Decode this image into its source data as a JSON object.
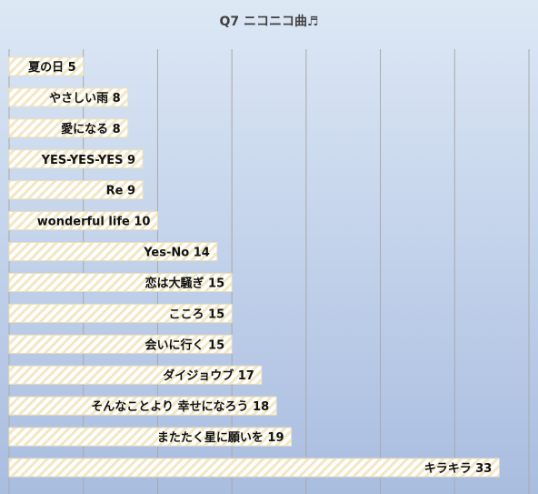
{
  "chart_data": {
    "type": "bar",
    "orientation": "horizontal",
    "title": "Q7 ニコニコ曲♬",
    "categories": [
      "夏の日",
      "やさしい雨",
      "愛になる",
      "YES-YES-YES",
      "Re",
      "wonderful life",
      "Yes-No",
      "恋は大騒ぎ",
      "こころ",
      "会いに行く",
      "ダイジョウブ",
      "そんなことより 幸せになろう",
      "またたく星に願いを",
      "キラキラ"
    ],
    "values": [
      5,
      8,
      8,
      9,
      9,
      10,
      14,
      15,
      15,
      15,
      17,
      18,
      19,
      33
    ],
    "xlim": [
      0,
      35
    ],
    "grid": true,
    "data_labels": "inside-end",
    "legend": "none"
  },
  "colors": {
    "background_top": "#dde8f5",
    "background_bottom": "#a9bde0",
    "bar_fill": "#ffffff",
    "bar_stripe": "#f2e7c4",
    "bar_border": "#ece0b8",
    "gridline": "#a9a9a9",
    "title": "#404040",
    "label": "#111111"
  }
}
